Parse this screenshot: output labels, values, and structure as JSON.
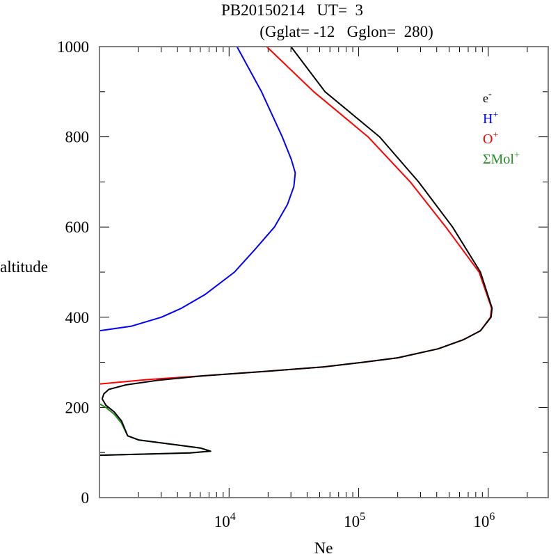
{
  "chart_data": {
    "type": "line",
    "title": "PB20150214   UT=  3",
    "subtitle": "(Gglat= -12   Gglon=  280)",
    "xlabel": "Ne",
    "ylabel": "altitude",
    "xscale": "log",
    "xlim": [
      1000,
      2900000
    ],
    "ylim": [
      0,
      1000
    ],
    "x_tick_labels": [
      {
        "value": 10000,
        "base": "10",
        "exp": "4"
      },
      {
        "value": 100000,
        "base": "10",
        "exp": "5"
      },
      {
        "value": 1000000,
        "base": "10",
        "exp": "6"
      }
    ],
    "y_tick_labels": [
      "0",
      "200",
      "400",
      "600",
      "800",
      "1000"
    ],
    "y_tick_values": [
      0,
      200,
      400,
      600,
      800,
      1000
    ],
    "legend_position": "top-right",
    "series": [
      {
        "name": "e",
        "sup": "-",
        "color": "#000000",
        "points": [
          [
            30000,
            1000
          ],
          [
            55000,
            900
          ],
          [
            145000,
            800
          ],
          [
            290000,
            700
          ],
          [
            530000,
            600
          ],
          [
            870000,
            500
          ],
          [
            1070000,
            420
          ],
          [
            1050000,
            400
          ],
          [
            870000,
            370
          ],
          [
            640000,
            350
          ],
          [
            410000,
            330
          ],
          [
            200000,
            310
          ],
          [
            107000,
            300
          ],
          [
            54000,
            290
          ],
          [
            19000,
            280
          ],
          [
            6300,
            270
          ],
          [
            2800,
            260
          ],
          [
            1600,
            250
          ],
          [
            1180,
            240
          ],
          [
            1080,
            230
          ],
          [
            1050,
            219
          ],
          [
            1120,
            205
          ],
          [
            1300,
            190
          ],
          [
            1480,
            170
          ],
          [
            1650,
            137
          ],
          [
            2000,
            128
          ],
          [
            6000,
            110
          ],
          [
            7200,
            103
          ],
          [
            5000,
            99
          ],
          [
            1000,
            94
          ]
        ]
      },
      {
        "name": "H",
        "sup": "+",
        "color": "#0000ff",
        "points": [
          [
            11500,
            1000
          ],
          [
            17800,
            900
          ],
          [
            25700,
            800
          ],
          [
            30200,
            750
          ],
          [
            32400,
            720
          ],
          [
            31600,
            690
          ],
          [
            28200,
            650
          ],
          [
            22400,
            600
          ],
          [
            15800,
            550
          ],
          [
            11000,
            500
          ],
          [
            6500,
            450
          ],
          [
            4300,
            420
          ],
          [
            3000,
            400
          ],
          [
            1750,
            380
          ],
          [
            1000,
            370
          ]
        ]
      },
      {
        "name": "O",
        "sup": "+",
        "color": "#ff0000",
        "points": [
          [
            19500,
            1000
          ],
          [
            45000,
            900
          ],
          [
            118000,
            800
          ],
          [
            250000,
            700
          ],
          [
            470000,
            600
          ],
          [
            850000,
            500
          ],
          [
            1060000,
            420
          ],
          [
            1040000,
            400
          ],
          [
            870000,
            370
          ],
          [
            640000,
            350
          ],
          [
            410000,
            330
          ],
          [
            200000,
            310
          ],
          [
            107000,
            300
          ],
          [
            54000,
            290
          ],
          [
            19000,
            280
          ],
          [
            6300,
            270
          ],
          [
            2400,
            262
          ],
          [
            1000,
            252
          ]
        ]
      },
      {
        "name": "ΣMol",
        "sup": "+",
        "color": "#228b22",
        "points": [
          [
            1000,
            208
          ],
          [
            1120,
            200
          ],
          [
            1300,
            185
          ],
          [
            1480,
            165
          ],
          [
            1650,
            137
          ],
          [
            2000,
            128
          ],
          [
            6000,
            110
          ],
          [
            7200,
            103
          ],
          [
            5000,
            99
          ],
          [
            1000,
            94
          ]
        ]
      }
    ]
  }
}
